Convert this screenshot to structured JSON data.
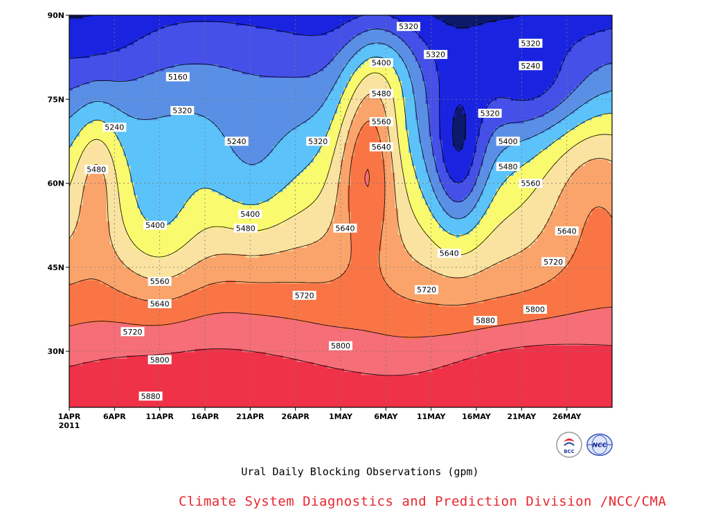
{
  "chart_data": {
    "type": "heatmap",
    "title": "Ural Daily Blocking Observations (gpm)",
    "x_tick_labels": [
      "1APR",
      "6APR",
      "11APR",
      "16APR",
      "21APR",
      "26APR",
      "1MAY",
      "6MAY",
      "11MAY",
      "16MAY",
      "21MAY",
      "26MAY"
    ],
    "x_year_label": "2011",
    "y_tick_labels": [
      "30N",
      "45N",
      "60N",
      "75N",
      "90N"
    ],
    "x_range": [
      "1APR2011",
      "31MAY2011"
    ],
    "ylim": [
      20,
      90
    ],
    "levels": [
      5160,
      5240,
      5320,
      5400,
      5480,
      5560,
      5640,
      5720,
      5800,
      5880
    ],
    "band_colors": [
      "#0d1a6b",
      "#1a24e0",
      "#4450e8",
      "#5a8fe6",
      "#5cc3fa",
      "#fafa6e",
      "#fae3a0",
      "#faa46b",
      "#fa7545",
      "#f56e78",
      "#ef3248"
    ],
    "contour_labels": [
      {
        "text": "5160",
        "day": 12.0,
        "lat": 79.0
      },
      {
        "text": "5240",
        "day": 5.0,
        "lat": 70.0
      },
      {
        "text": "5320",
        "day": 12.5,
        "lat": 73.0
      },
      {
        "text": "5240",
        "day": 18.5,
        "lat": 67.5
      },
      {
        "text": "5320",
        "day": 27.5,
        "lat": 67.5
      },
      {
        "text": "5320",
        "day": 37.5,
        "lat": 88.0
      },
      {
        "text": "5400",
        "day": 34.5,
        "lat": 81.5
      },
      {
        "text": "5320",
        "day": 40.5,
        "lat": 83.0
      },
      {
        "text": "5320",
        "day": 51.0,
        "lat": 85.0
      },
      {
        "text": "5240",
        "day": 51.0,
        "lat": 81.0
      },
      {
        "text": "5480",
        "day": 34.5,
        "lat": 76.0
      },
      {
        "text": "5560",
        "day": 34.5,
        "lat": 71.0
      },
      {
        "text": "5640",
        "day": 34.5,
        "lat": 66.5
      },
      {
        "text": "5320",
        "day": 46.5,
        "lat": 72.5
      },
      {
        "text": "5400",
        "day": 48.5,
        "lat": 67.5
      },
      {
        "text": "5480",
        "day": 48.5,
        "lat": 63.0
      },
      {
        "text": "5560",
        "day": 51.0,
        "lat": 60.0
      },
      {
        "text": "5480",
        "day": 3.0,
        "lat": 62.5
      },
      {
        "text": "5400",
        "day": 9.5,
        "lat": 52.5
      },
      {
        "text": "5400",
        "day": 20.0,
        "lat": 54.5
      },
      {
        "text": "5480",
        "day": 19.5,
        "lat": 52.0
      },
      {
        "text": "5640",
        "day": 55.0,
        "lat": 51.5
      },
      {
        "text": "5640",
        "day": 30.5,
        "lat": 52.0
      },
      {
        "text": "5560",
        "day": 10.0,
        "lat": 42.5
      },
      {
        "text": "5640",
        "day": 10.0,
        "lat": 38.5
      },
      {
        "text": "5640",
        "day": 42.0,
        "lat": 47.5
      },
      {
        "text": "5720",
        "day": 53.5,
        "lat": 46.0
      },
      {
        "text": "5720",
        "day": 26.0,
        "lat": 40.0
      },
      {
        "text": "5720",
        "day": 39.5,
        "lat": 41.0
      },
      {
        "text": "5720",
        "day": 7.0,
        "lat": 33.5
      },
      {
        "text": "5800",
        "day": 10.0,
        "lat": 28.5
      },
      {
        "text": "5800",
        "day": 30.0,
        "lat": 31.0
      },
      {
        "text": "5800",
        "day": 51.5,
        "lat": 37.5
      },
      {
        "text": "5880",
        "day": 46.0,
        "lat": 35.5
      },
      {
        "text": "5880",
        "day": 9.0,
        "lat": 22.0
      }
    ]
  },
  "chart_title": "Ural Daily Blocking Observations (gpm)",
  "credit": "Climate System Diagnostics and Prediction Division /NCC/CMA",
  "logos": [
    {
      "name": "bcc-logo",
      "text": "BCC"
    },
    {
      "name": "ncc-logo",
      "text": "NCC"
    }
  ]
}
